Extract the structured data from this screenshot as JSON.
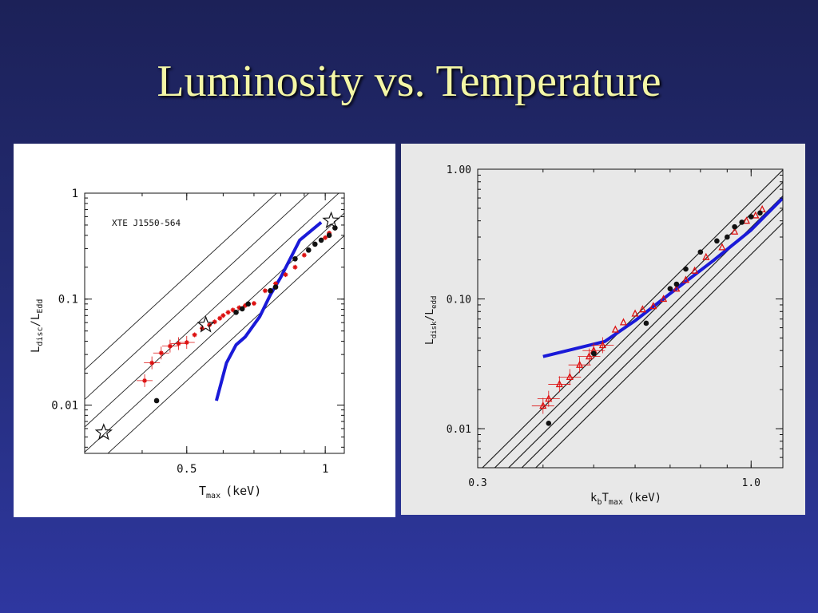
{
  "slide": {
    "title": "Luminosity vs. Temperature"
  },
  "chart_data": [
    {
      "type": "scatter",
      "annotation": "XTE J1550-564",
      "xlabel_main": "T",
      "xlabel_sub": "max",
      "xlabel_unit": "(keV)",
      "ylabel_main": "L",
      "ylabel_sub1": "disc",
      "ylabel_mid": "/L",
      "ylabel_sub2": "Edd",
      "xscale": "log",
      "yscale": "log",
      "xlim": [
        0.3,
        1.1
      ],
      "ylim": [
        0.0035,
        1.0
      ],
      "xticks": [
        {
          "v": 0.5,
          "label": "0.5"
        },
        {
          "v": 1,
          "label": "1"
        }
      ],
      "yticks": [
        {
          "v": 0.01,
          "label": "0.01"
        },
        {
          "v": 0.1,
          "label": "0.1"
        },
        {
          "v": 1,
          "label": "1"
        }
      ],
      "reference_lines": [
        {
          "x": [
            0.3,
            1.1
          ],
          "y": [
            0.0215,
            3.874
          ]
        },
        {
          "x": [
            0.3,
            1.1
          ],
          "y": [
            0.0113,
            2.036
          ]
        },
        {
          "x": [
            0.3,
            1.1
          ],
          "y": [
            0.0062,
            1.117
          ]
        },
        {
          "x": [
            0.3,
            1.1
          ],
          "y": [
            0.0036,
            0.649
          ]
        },
        {
          "x": [
            0.3,
            1.1
          ],
          "y": [
            0.0022,
            0.397
          ]
        }
      ],
      "series": [
        {
          "color": "#dd1111",
          "marker": "star",
          "x": [
            0.405,
            0.42,
            0.44,
            0.46,
            0.48,
            0.5,
            0.52,
            0.54,
            0.56,
            0.575,
            0.59,
            0.6,
            0.615,
            0.63,
            0.65,
            0.67,
            0.7,
            0.74,
            0.78,
            0.82,
            0.86,
            0.9,
            0.95,
            1.0,
            1.02,
            1.05
          ],
          "y": [
            0.017,
            0.025,
            0.031,
            0.036,
            0.038,
            0.039,
            0.046,
            0.053,
            0.057,
            0.061,
            0.066,
            0.07,
            0.075,
            0.079,
            0.083,
            0.087,
            0.091,
            0.12,
            0.14,
            0.17,
            0.2,
            0.26,
            0.33,
            0.38,
            0.42,
            0.47
          ]
        },
        {
          "color": "#111111",
          "marker": "dot",
          "x": [
            0.43,
            0.64,
            0.66,
            0.68,
            0.76,
            0.78,
            0.86,
            0.92,
            0.95,
            0.98,
            1.02,
            1.05
          ],
          "y": [
            0.011,
            0.075,
            0.081,
            0.09,
            0.12,
            0.13,
            0.24,
            0.29,
            0.33,
            0.36,
            0.4,
            0.47
          ]
        },
        {
          "color": "#111111",
          "marker": "open-star",
          "x": [
            0.33,
            0.55,
            1.03
          ],
          "y": [
            0.0055,
            0.057,
            0.55
          ]
        }
      ],
      "model_curve": {
        "color": "#1a1ad8",
        "x": [
          0.58,
          0.61,
          0.64,
          0.67,
          0.72,
          0.76,
          0.8,
          0.88,
          0.98
        ],
        "y": [
          0.011,
          0.025,
          0.037,
          0.044,
          0.068,
          0.11,
          0.16,
          0.36,
          0.53
        ]
      }
    },
    {
      "type": "scatter",
      "xlabel_main": "k",
      "xlabel_sub": "b",
      "xlabel_mid": "T",
      "xlabel_sub2": "max",
      "xlabel_unit": "(keV)",
      "ylabel_main": "L",
      "ylabel_sub1": "disk",
      "ylabel_mid": "/L",
      "ylabel_sub2": "edd",
      "xscale": "log",
      "yscale": "log",
      "xlim": [
        0.3,
        1.15
      ],
      "ylim": [
        0.005,
        1.0
      ],
      "xticks": [
        {
          "v": 0.3,
          "label": "0.3"
        },
        {
          "v": 1.0,
          "label": "1.0"
        }
      ],
      "yticks": [
        {
          "v": 0.01,
          "label": "0.01"
        },
        {
          "v": 0.1,
          "label": "0.10"
        },
        {
          "v": 1.0,
          "label": "1.00"
        }
      ],
      "reference_lines": [
        {
          "x": [
            0.3,
            1.15
          ],
          "y": [
            0.0046,
            0.987
          ]
        },
        {
          "x": [
            0.3,
            1.15
          ],
          "y": [
            0.0037,
            0.794
          ]
        },
        {
          "x": [
            0.3,
            1.15
          ],
          "y": [
            0.0029,
            0.622
          ]
        },
        {
          "x": [
            0.3,
            1.15
          ],
          "y": [
            0.0023,
            0.493
          ]
        },
        {
          "x": [
            0.3,
            1.15
          ],
          "y": [
            0.0018,
            0.386
          ]
        }
      ],
      "series": [
        {
          "color": "#dd1111",
          "marker": "triangle",
          "x": [
            0.4,
            0.41,
            0.43,
            0.45,
            0.47,
            0.49,
            0.5,
            0.52,
            0.55,
            0.57,
            0.6,
            0.62,
            0.65,
            0.68,
            0.72,
            0.75,
            0.78,
            0.82,
            0.88,
            0.93,
            0.98,
            1.02,
            1.05
          ],
          "y": [
            0.015,
            0.017,
            0.022,
            0.025,
            0.031,
            0.036,
            0.04,
            0.044,
            0.058,
            0.066,
            0.077,
            0.083,
            0.088,
            0.1,
            0.12,
            0.14,
            0.165,
            0.21,
            0.25,
            0.33,
            0.4,
            0.44,
            0.49
          ]
        },
        {
          "color": "#111111",
          "marker": "dot",
          "x": [
            0.41,
            0.5,
            0.63,
            0.7,
            0.72,
            0.75,
            0.8,
            0.86,
            0.9,
            0.93,
            0.96,
            1.0,
            1.04
          ],
          "y": [
            0.011,
            0.038,
            0.065,
            0.12,
            0.13,
            0.17,
            0.23,
            0.28,
            0.3,
            0.36,
            0.39,
            0.43,
            0.46
          ]
        }
      ],
      "model_curve": {
        "color": "#1a1ad8",
        "x": [
          0.4,
          0.525,
          0.6,
          0.7,
          0.85,
          1.0,
          1.15
        ],
        "y": [
          0.036,
          0.047,
          0.068,
          0.11,
          0.2,
          0.34,
          0.6
        ]
      }
    }
  ]
}
